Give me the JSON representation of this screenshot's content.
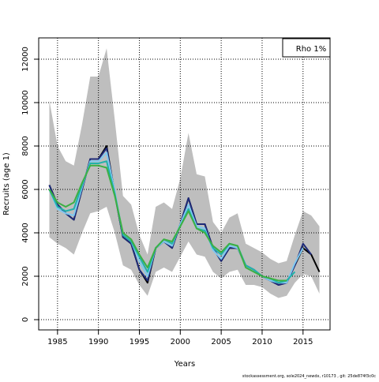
{
  "chart_data": {
    "type": "line",
    "x_label": "Years",
    "y_label": "Recruits (age 1)",
    "annotation": "Rho 1%",
    "caption": "stockassessment.org, sole2024_newdx, r10173 , git: 25de874f3c0c",
    "grid": true,
    "legend_position": "top-right",
    "x": [
      1984,
      1985,
      1986,
      1987,
      1988,
      1989,
      1990,
      1991,
      1992,
      1993,
      1994,
      1995,
      1996,
      1997,
      1998,
      1999,
      2000,
      2001,
      2002,
      2003,
      2004,
      2005,
      2006,
      2007,
      2008,
      2009,
      2010,
      2011,
      2012,
      2013,
      2014,
      2015,
      2016,
      2017
    ],
    "xlim": [
      1982.7,
      2018.3
    ],
    "xticks": [
      1985,
      1990,
      1995,
      2000,
      2005,
      2010,
      2015
    ],
    "ylim": [
      -473,
      12982
    ],
    "yticks": [
      0,
      2000,
      4000,
      6000,
      8000,
      10000,
      12000
    ],
    "band": {
      "color": "#bebebe",
      "upper": [
        10100,
        8000,
        7300,
        7100,
        9000,
        11200,
        11200,
        12500,
        9200,
        5700,
        5300,
        3900,
        3000,
        5200,
        5400,
        5100,
        6500,
        8600,
        6700,
        6600,
        4500,
        4000,
        4700,
        4900,
        3500,
        3300,
        3100,
        2800,
        2600,
        2700,
        3900,
        5000,
        4800,
        4300
      ],
      "lower": [
        3800,
        3500,
        3300,
        3000,
        4000,
        4900,
        5000,
        5200,
        4000,
        2500,
        2300,
        1600,
        1100,
        2200,
        2400,
        2200,
        2900,
        3600,
        3000,
        2900,
        2200,
        1900,
        2200,
        2300,
        1600,
        1600,
        1500,
        1200,
        1000,
        1100,
        1700,
        2100,
        2000,
        1200
      ]
    },
    "series": [
      {
        "color": "#000000",
        "values": [
          6200,
          5300,
          4900,
          4600,
          6000,
          7400,
          7400,
          8000,
          5800,
          3800,
          3500,
          2300,
          1700,
          3300,
          3600,
          3300,
          4400,
          5600,
          4400,
          4400,
          3300,
          2700,
          3300,
          3300,
          2500,
          2300,
          2000,
          1800,
          1600,
          1700,
          2500,
          3300,
          3000,
          2200
        ]
      },
      {
        "color": "#1e2a78",
        "values": [
          6200,
          5300,
          4900,
          4600,
          6000,
          7400,
          7400,
          7900,
          5800,
          3800,
          3500,
          2300,
          1800,
          3300,
          3600,
          3300,
          4400,
          5600,
          4400,
          4400,
          3300,
          2700,
          3300,
          3300,
          2500,
          2300,
          2000,
          1800,
          1600,
          1700,
          2500,
          3500,
          3000,
          null
        ]
      },
      {
        "color": "#7ec8f0",
        "values": [
          6000,
          5100,
          4900,
          4800,
          6100,
          7300,
          7300,
          7700,
          5900,
          3900,
          3600,
          2700,
          2000,
          3300,
          3600,
          3400,
          4400,
          5300,
          4300,
          4200,
          3200,
          2800,
          3400,
          3300,
          2500,
          2300,
          2000,
          1800,
          1700,
          1700,
          2600,
          3300,
          null,
          null
        ]
      },
      {
        "color": "#20b2aa",
        "values": [
          6000,
          5200,
          5000,
          5100,
          6200,
          7200,
          7200,
          7300,
          5800,
          3900,
          3600,
          2900,
          2200,
          3300,
          3700,
          3500,
          4300,
          5100,
          4200,
          4100,
          3300,
          3000,
          3500,
          3400,
          2500,
          2300,
          2000,
          1900,
          1700,
          1800,
          2200,
          null,
          null,
          null
        ]
      },
      {
        "color": "#3cb043",
        "values": [
          6000,
          5400,
          5200,
          5400,
          6300,
          7100,
          7100,
          7000,
          5700,
          4000,
          3700,
          3000,
          2400,
          3300,
          3700,
          3600,
          4300,
          5000,
          4200,
          4000,
          3400,
          3100,
          3500,
          3400,
          2400,
          2200,
          2000,
          1900,
          1800,
          1800,
          null,
          null,
          null,
          null
        ]
      }
    ]
  }
}
